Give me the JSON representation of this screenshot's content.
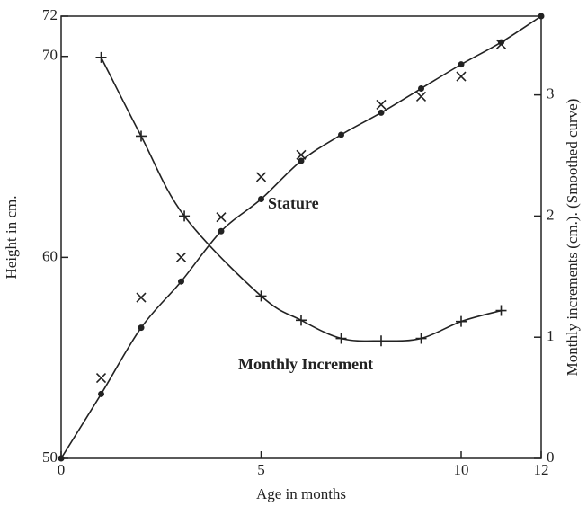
{
  "chart_data": {
    "type": "scatter",
    "xlabel": "Age in months",
    "ylabel": "Height in cm.",
    "y2label": "Monthly increments (cm.). (Smoothed curve)",
    "annotations": [
      "Stature",
      "Monthly Increment"
    ],
    "xlim": [
      0,
      12
    ],
    "xticks": [
      0,
      5,
      10,
      12
    ],
    "ylim": [
      50,
      72
    ],
    "yticks": [
      50,
      60,
      70,
      72
    ],
    "y2lim": [
      0,
      3.65
    ],
    "y2ticks": [
      0,
      1,
      2,
      3
    ],
    "series": [
      {
        "marker": "dot",
        "line": true,
        "color": "#222",
        "x": [
          0,
          1,
          2,
          3,
          4,
          5,
          6,
          7,
          8,
          9,
          10,
          11,
          12
        ],
        "values": [
          50,
          53.2,
          56.5,
          58.8,
          61.3,
          62.9,
          64.8,
          66.1,
          67.2,
          68.4,
          69.6,
          70.7,
          72
        ]
      },
      {
        "marker": "cross",
        "line": false,
        "color": "#222",
        "x": [
          1,
          2,
          3,
          4,
          5,
          6,
          8,
          9,
          10,
          11
        ],
        "values": [
          54.0,
          58.0,
          60.0,
          62.0,
          64.0,
          65.1,
          67.6,
          68.0,
          69.0,
          70.6
        ]
      },
      {
        "marker": "plus",
        "line": true,
        "axis": "y2",
        "color": "#222",
        "x": [
          1,
          2,
          3.08,
          5,
          6,
          7,
          8,
          9,
          10,
          11
        ],
        "values": [
          3.31,
          2.66,
          2.0,
          1.34,
          1.14,
          0.99,
          0.97,
          0.99,
          1.13,
          1.22
        ]
      }
    ]
  }
}
